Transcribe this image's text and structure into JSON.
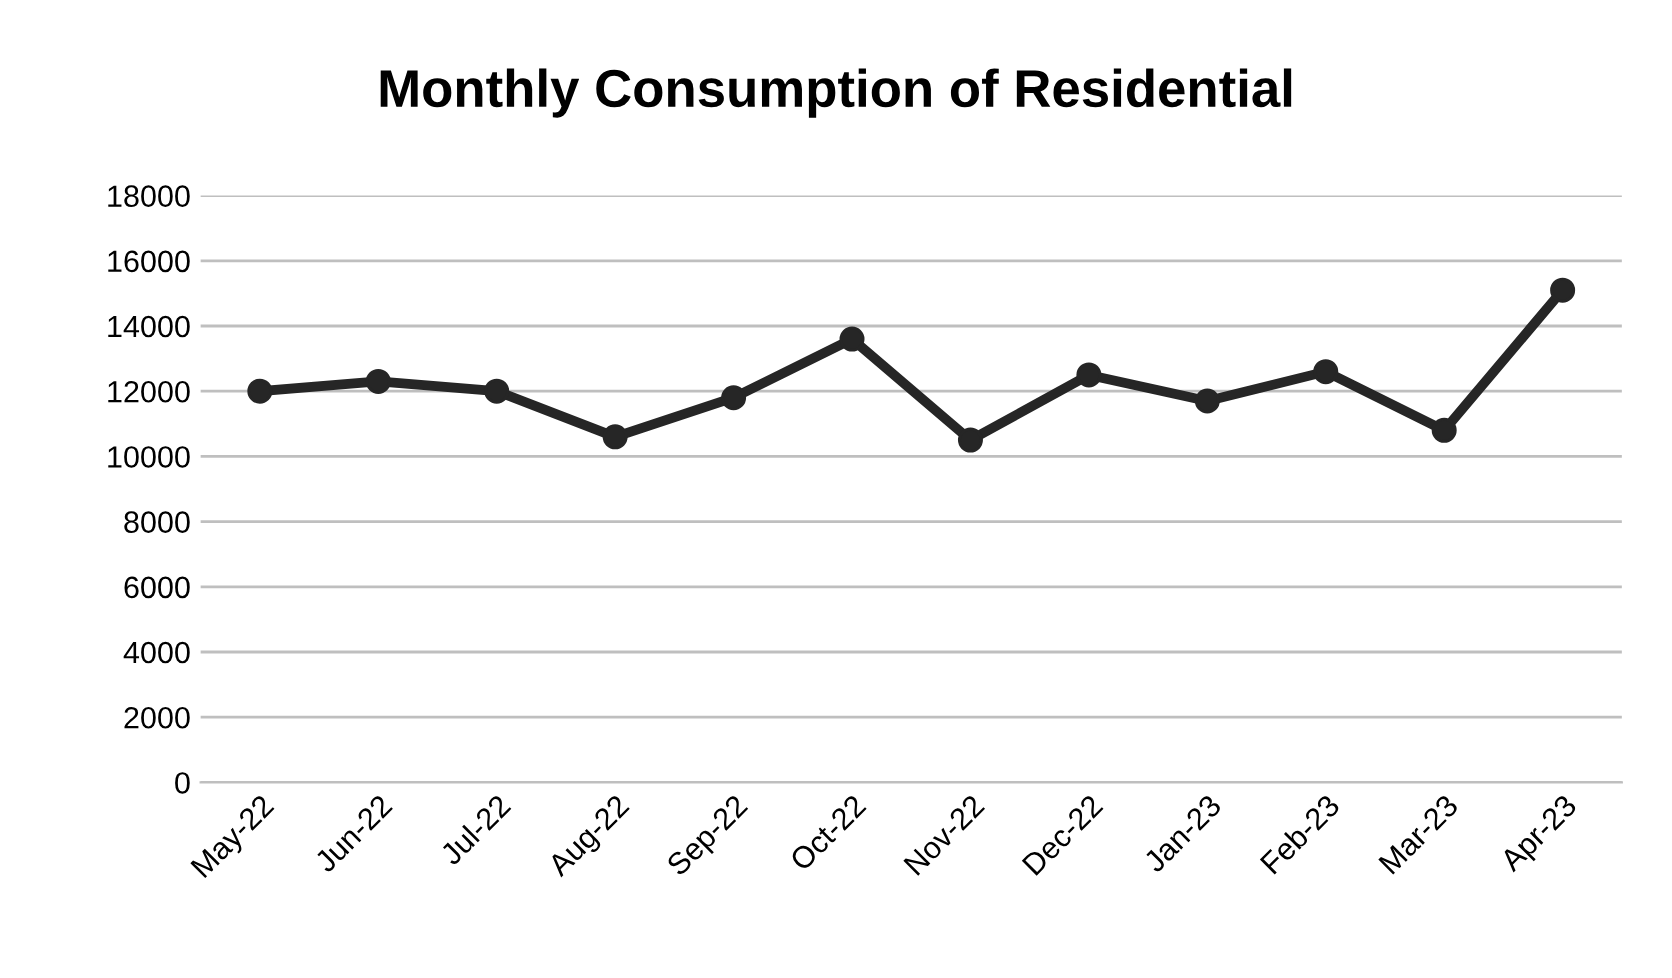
{
  "chart_data": {
    "type": "line",
    "title": "Monthly Consumption of Residential",
    "categories": [
      "May-22",
      "Jun-22",
      "Jul-22",
      "Aug-22",
      "Sep-22",
      "Oct-22",
      "Nov-22",
      "Dec-22",
      "Jan-23",
      "Feb-23",
      "Mar-23",
      "Apr-23"
    ],
    "series": [
      {
        "color": "#262626",
        "values": [
          12000,
          12300,
          12000,
          10600,
          11800,
          13600,
          10500,
          12500,
          11700,
          12600,
          10800,
          15100
        ]
      }
    ],
    "ylim": [
      0,
      18000
    ],
    "yticks": [
      0,
      2000,
      4000,
      6000,
      8000,
      10000,
      12000,
      14000,
      16000,
      18000
    ],
    "grid": "y",
    "marker": "circle",
    "line_style": "solid",
    "legend": false
  }
}
